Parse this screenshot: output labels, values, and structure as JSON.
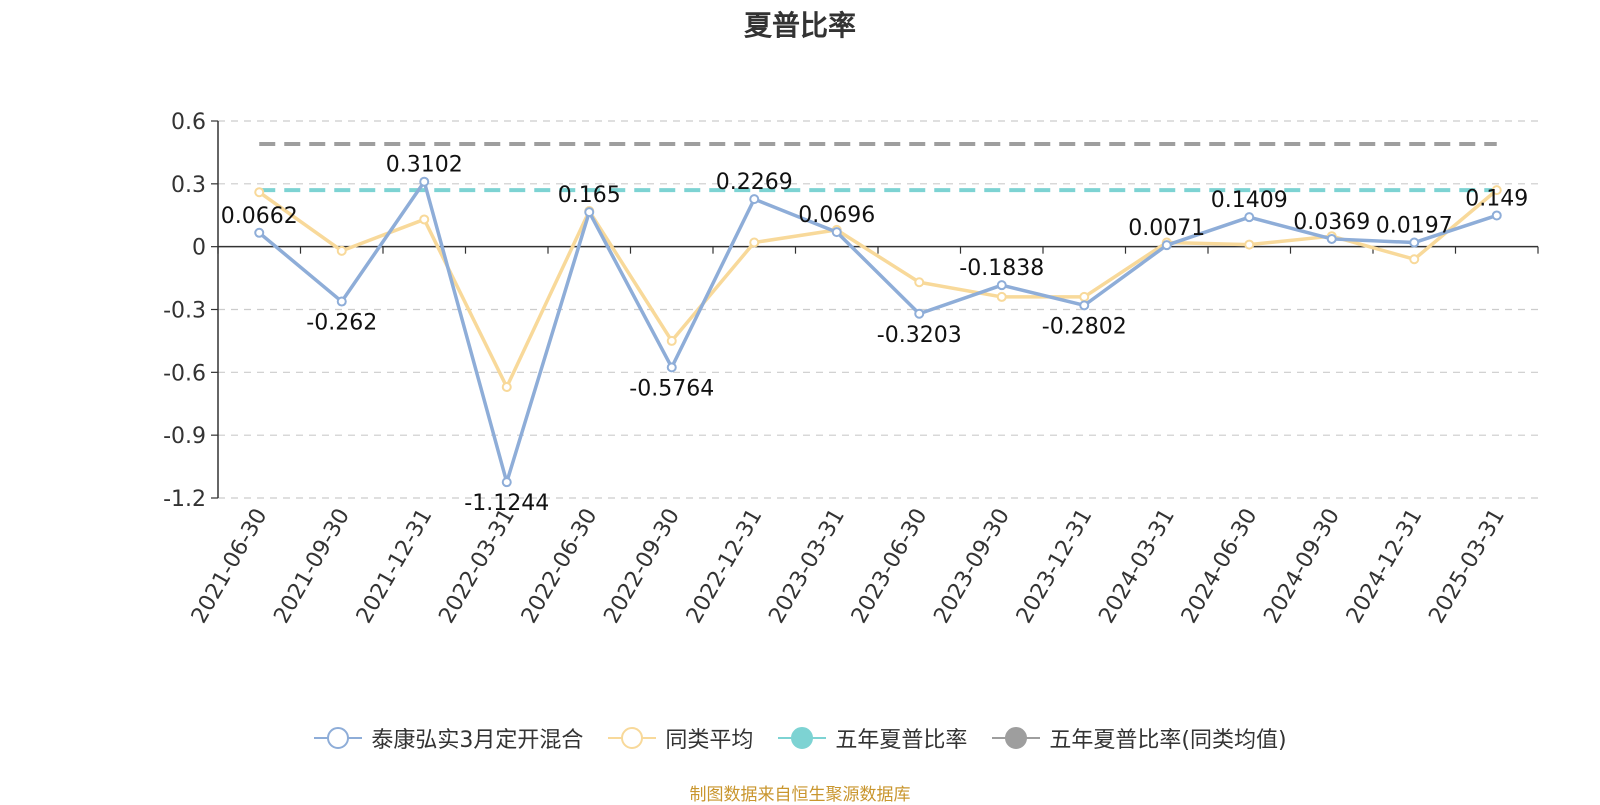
{
  "chart_data": {
    "type": "line",
    "title": "夏普比率",
    "categories": [
      "2021-06-30",
      "2021-09-30",
      "2021-12-31",
      "2022-03-31",
      "2022-06-30",
      "2022-09-30",
      "2022-12-31",
      "2023-03-31",
      "2023-06-30",
      "2023-09-30",
      "2023-12-31",
      "2024-03-31",
      "2024-06-30",
      "2024-09-30",
      "2024-12-31",
      "2025-03-31"
    ],
    "ylim": [
      -1.2,
      0.6
    ],
    "yticks": [
      "0.6",
      "0.3",
      "0",
      "-0.3",
      "-0.6",
      "-0.9",
      "-1.2"
    ],
    "grid": true,
    "legend_position": "bottom",
    "series": [
      {
        "name": "泰康弘实3月定开混合",
        "color": "#8eadd8",
        "values": [
          0.0662,
          -0.262,
          0.3102,
          -1.1244,
          0.165,
          -0.5764,
          0.2269,
          0.0696,
          -0.3203,
          -0.1838,
          -0.2802,
          0.0071,
          0.1409,
          0.0369,
          0.0197,
          0.149
        ],
        "labels": [
          "0.0662",
          "-0.262",
          "0.3102",
          "-1.1244",
          "0.165",
          "-0.5764",
          "0.2269",
          "0.0696",
          "-0.3203",
          "-0.1838",
          "-0.2802",
          "0.0071",
          "0.1409",
          "0.0369",
          "0.0197",
          "0.149"
        ]
      },
      {
        "name": "同类平均",
        "color": "#f8d99a",
        "values": [
          0.26,
          -0.02,
          0.13,
          -0.67,
          0.17,
          -0.45,
          0.02,
          0.08,
          -0.17,
          -0.24,
          -0.24,
          0.02,
          0.01,
          0.05,
          -0.06,
          0.27
        ]
      },
      {
        "name": "五年夏普比率",
        "color": "#7dd3d3",
        "value": 0.27
      },
      {
        "name": "五年夏普比率(同类均值)",
        "color": "#9e9e9e",
        "value": 0.49
      }
    ],
    "source": "制图数据来自恒生聚源数据库"
  }
}
